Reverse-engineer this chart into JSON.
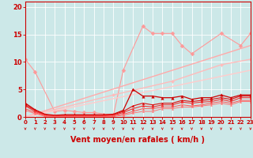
{
  "xlabel": "Vent moyen/en rafales ( km/h )",
  "xlim": [
    0,
    23
  ],
  "ylim": [
    0,
    21
  ],
  "bg_color": "#cce8e8",
  "grid_color": "#ffffff",
  "xticks": [
    0,
    1,
    2,
    3,
    4,
    5,
    6,
    7,
    8,
    9,
    10,
    11,
    12,
    13,
    14,
    15,
    16,
    17,
    18,
    19,
    20,
    21,
    22,
    23
  ],
  "yticks": [
    0,
    5,
    10,
    15,
    20
  ],
  "lines": [
    {
      "x": [
        0,
        1,
        3,
        4,
        5,
        6,
        7,
        9,
        10,
        12,
        13,
        14,
        15,
        16,
        17,
        20,
        22,
        23
      ],
      "y": [
        10.5,
        8.2,
        1.0,
        1.2,
        1.0,
        0.8,
        0.8,
        0.3,
        8.5,
        16.5,
        15.2,
        15.2,
        15.2,
        13.0,
        11.5,
        15.2,
        13.0,
        15.2
      ],
      "color": "#ff9999",
      "marker": "D",
      "ms": 2.5,
      "lw": 0.8
    },
    {
      "x": [
        0,
        23
      ],
      "y": [
        0,
        13.0
      ],
      "color": "#ffaaaa",
      "marker": null,
      "ms": 0,
      "lw": 1.0
    },
    {
      "x": [
        0,
        9,
        15,
        20,
        23
      ],
      "y": [
        0,
        4.0,
        6.5,
        9.5,
        10.5
      ],
      "color": "#ffbbbb",
      "marker": "D",
      "ms": 2.0,
      "lw": 1.0
    },
    {
      "x": [
        0,
        23
      ],
      "y": [
        0,
        8.5
      ],
      "color": "#ffcccc",
      "marker": null,
      "ms": 0,
      "lw": 1.0
    },
    {
      "x": [
        0,
        1,
        2,
        3,
        4,
        5,
        6,
        7,
        8,
        9,
        10,
        11,
        12,
        13,
        14,
        15,
        16,
        17,
        18,
        19,
        20,
        21,
        22,
        23
      ],
      "y": [
        2.5,
        1.3,
        0.5,
        0.3,
        0.4,
        0.4,
        0.4,
        0.4,
        0.4,
        0.5,
        1.2,
        5.0,
        3.8,
        3.8,
        3.5,
        3.5,
        3.8,
        3.2,
        3.5,
        3.5,
        4.0,
        3.5,
        4.0,
        4.0
      ],
      "color": "#cc0000",
      "marker": "^",
      "ms": 2.5,
      "lw": 0.9
    },
    {
      "x": [
        0,
        1,
        2,
        3,
        4,
        5,
        6,
        7,
        8,
        9,
        10,
        11,
        12,
        13,
        14,
        15,
        16,
        17,
        18,
        19,
        20,
        21,
        22,
        23
      ],
      "y": [
        2.2,
        1.2,
        0.4,
        0.2,
        0.3,
        0.3,
        0.3,
        0.3,
        0.3,
        0.4,
        1.0,
        2.0,
        2.5,
        2.2,
        2.5,
        2.5,
        3.0,
        2.8,
        3.0,
        3.2,
        3.5,
        3.2,
        3.8,
        3.8
      ],
      "color": "#dd1111",
      "marker": "^",
      "ms": 2.0,
      "lw": 0.8
    },
    {
      "x": [
        0,
        1,
        2,
        3,
        4,
        5,
        6,
        7,
        8,
        9,
        10,
        11,
        12,
        13,
        14,
        15,
        16,
        17,
        18,
        19,
        20,
        21,
        22,
        23
      ],
      "y": [
        2.0,
        1.0,
        0.3,
        0.1,
        0.2,
        0.2,
        0.2,
        0.2,
        0.2,
        0.3,
        0.8,
        1.5,
        2.0,
        1.8,
        2.2,
        2.2,
        2.7,
        2.5,
        2.7,
        2.8,
        3.2,
        2.8,
        3.5,
        3.5
      ],
      "color": "#ee3333",
      "marker": "^",
      "ms": 2.0,
      "lw": 0.8
    },
    {
      "x": [
        0,
        1,
        2,
        3,
        4,
        5,
        6,
        7,
        8,
        9,
        10,
        11,
        12,
        13,
        14,
        15,
        16,
        17,
        18,
        19,
        20,
        21,
        22,
        23
      ],
      "y": [
        1.5,
        0.8,
        0.2,
        0.1,
        0.1,
        0.1,
        0.1,
        0.1,
        0.1,
        0.2,
        0.5,
        1.0,
        1.5,
        1.5,
        1.8,
        1.8,
        2.2,
        2.0,
        2.2,
        2.5,
        2.8,
        2.5,
        3.0,
        3.0
      ],
      "color": "#ff5555",
      "marker": "^",
      "ms": 1.5,
      "lw": 0.7
    },
    {
      "x": [
        0,
        1,
        2,
        3,
        4,
        5,
        6,
        7,
        8,
        9,
        10,
        11,
        12,
        13,
        14,
        15,
        16,
        17,
        18,
        19,
        20,
        21,
        22,
        23
      ],
      "y": [
        1.2,
        0.6,
        0.1,
        0.05,
        0.05,
        0.05,
        0.05,
        0.05,
        0.05,
        0.1,
        0.3,
        0.7,
        1.0,
        1.0,
        1.5,
        1.5,
        1.8,
        1.8,
        2.0,
        2.2,
        2.5,
        2.2,
        2.8,
        2.8
      ],
      "color": "#ff7777",
      "marker": "^",
      "ms": 1.5,
      "lw": 0.7
    }
  ],
  "arrow_color": "#cc0000",
  "xlabel_color": "#cc0000",
  "xlabel_fontsize": 7,
  "xtick_fontsize": 5,
  "ytick_fontsize": 6,
  "tick_color": "#cc0000",
  "spine_color": "#cc0000"
}
